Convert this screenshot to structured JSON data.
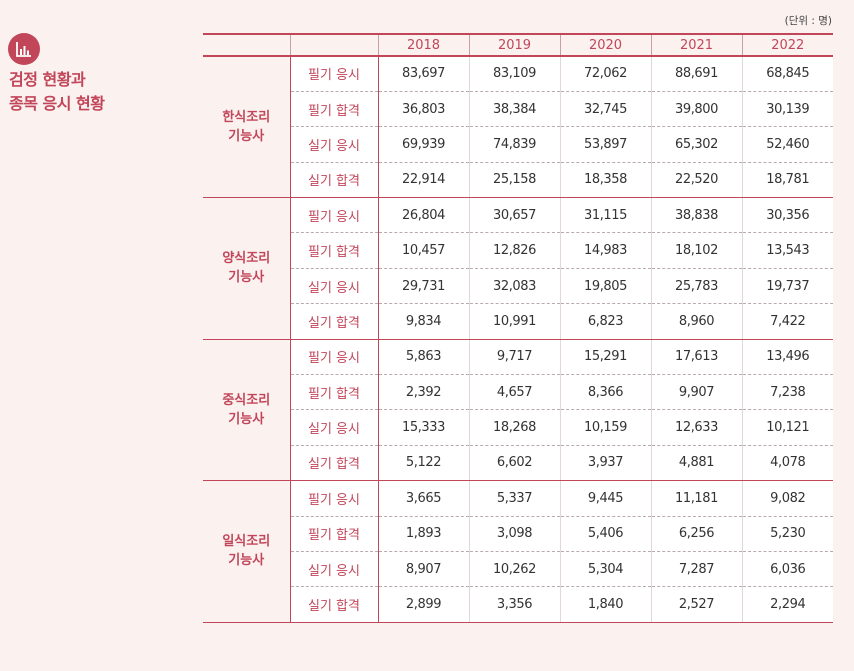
{
  "sidebar": {
    "icon": "bar-chart-icon",
    "title_line1": "검정 현황과",
    "title_line2": "종목 응시 현황"
  },
  "unit_label": "(단위 : 명)",
  "years": [
    "2018",
    "2019",
    "2020",
    "2021",
    "2022"
  ],
  "groups": [
    {
      "category": [
        "한식조리",
        "기능사"
      ],
      "rows": [
        {
          "label": "필기 응시",
          "values": [
            "83,697",
            "83,109",
            "72,062",
            "88,691",
            "68,845"
          ]
        },
        {
          "label": "필기 합격",
          "values": [
            "36,803",
            "38,384",
            "32,745",
            "39,800",
            "30,139"
          ]
        },
        {
          "label": "실기 응시",
          "values": [
            "69,939",
            "74,839",
            "53,897",
            "65,302",
            "52,460"
          ]
        },
        {
          "label": "실기 합격",
          "values": [
            "22,914",
            "25,158",
            "18,358",
            "22,520",
            "18,781"
          ]
        }
      ]
    },
    {
      "category": [
        "양식조리",
        "기능사"
      ],
      "rows": [
        {
          "label": "필기 응시",
          "values": [
            "26,804",
            "30,657",
            "31,115",
            "38,838",
            "30,356"
          ]
        },
        {
          "label": "필기 합격",
          "values": [
            "10,457",
            "12,826",
            "14,983",
            "18,102",
            "13,543"
          ]
        },
        {
          "label": "실기 응시",
          "values": [
            "29,731",
            "32,083",
            "19,805",
            "25,783",
            "19,737"
          ]
        },
        {
          "label": "실기 합격",
          "values": [
            "9,834",
            "10,991",
            "6,823",
            "8,960",
            "7,422"
          ]
        }
      ]
    },
    {
      "category": [
        "중식조리",
        "기능사"
      ],
      "rows": [
        {
          "label": "필기 응시",
          "values": [
            "5,863",
            "9,717",
            "15,291",
            "17,613",
            "13,496"
          ]
        },
        {
          "label": "필기 합격",
          "values": [
            "2,392",
            "4,657",
            "8,366",
            "9,907",
            "7,238"
          ]
        },
        {
          "label": "실기 응시",
          "values": [
            "15,333",
            "18,268",
            "10,159",
            "12,633",
            "10,121"
          ]
        },
        {
          "label": "실기 합격",
          "values": [
            "5,122",
            "6,602",
            "3,937",
            "4,881",
            "4,078"
          ]
        }
      ]
    },
    {
      "category": [
        "일식조리",
        "기능사"
      ],
      "rows": [
        {
          "label": "필기 응시",
          "values": [
            "3,665",
            "5,337",
            "9,445",
            "11,181",
            "9,082"
          ]
        },
        {
          "label": "필기 합격",
          "values": [
            "1,893",
            "3,098",
            "5,406",
            "6,256",
            "5,230"
          ]
        },
        {
          "label": "실기 응시",
          "values": [
            "8,907",
            "10,262",
            "5,304",
            "7,287",
            "6,036"
          ]
        },
        {
          "label": "실기 합격",
          "values": [
            "2,899",
            "3,356",
            "1,840",
            "2,527",
            "2,294"
          ]
        }
      ]
    }
  ]
}
